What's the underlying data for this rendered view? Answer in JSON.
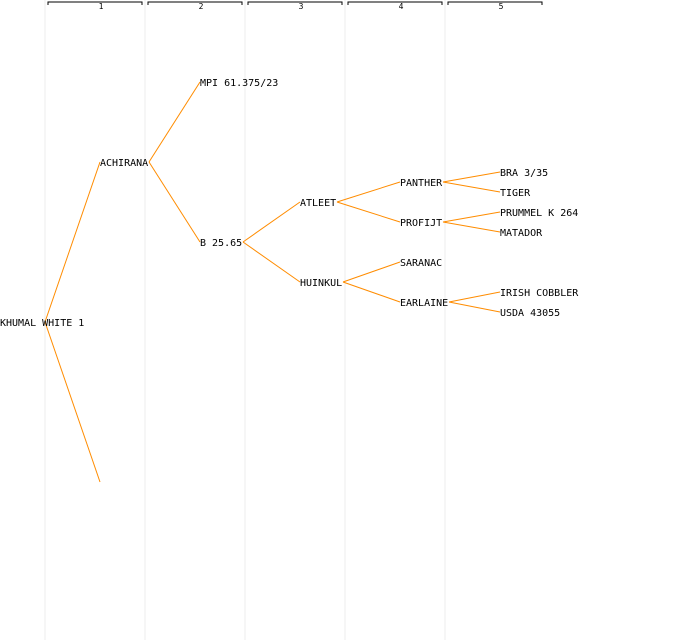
{
  "colors": {
    "edge": "#ff8c00",
    "guide": "#eeeeee",
    "text": "#000000",
    "background": "#ffffff"
  },
  "generations": [
    {
      "label": "1"
    },
    {
      "label": "2"
    },
    {
      "label": "3"
    },
    {
      "label": "4"
    },
    {
      "label": "5"
    }
  ],
  "tree": {
    "name": "KHUMAL WHITE 1",
    "children": [
      {
        "name": "ACHIRANA",
        "children": [
          {
            "name": "MPI 61.375/23"
          },
          {
            "name": "B 25.65",
            "children": [
              {
                "name": "ATLEET",
                "children": [
                  {
                    "name": "PANTHER",
                    "children": [
                      {
                        "name": "BRA 3/35"
                      },
                      {
                        "name": "TIGER"
                      }
                    ]
                  },
                  {
                    "name": "PROFIJT",
                    "children": [
                      {
                        "name": "PRUMMEL K 264"
                      },
                      {
                        "name": "MATADOR"
                      }
                    ]
                  }
                ]
              },
              {
                "name": "HUINKUL",
                "children": [
                  {
                    "name": "SARANAC"
                  },
                  {
                    "name": "EARLAINE",
                    "children": [
                      {
                        "name": "IRISH COBBLER"
                      },
                      {
                        "name": "USDA 43055"
                      }
                    ]
                  }
                ]
              }
            ]
          }
        ]
      },
      {
        "name": ""
      }
    ]
  }
}
